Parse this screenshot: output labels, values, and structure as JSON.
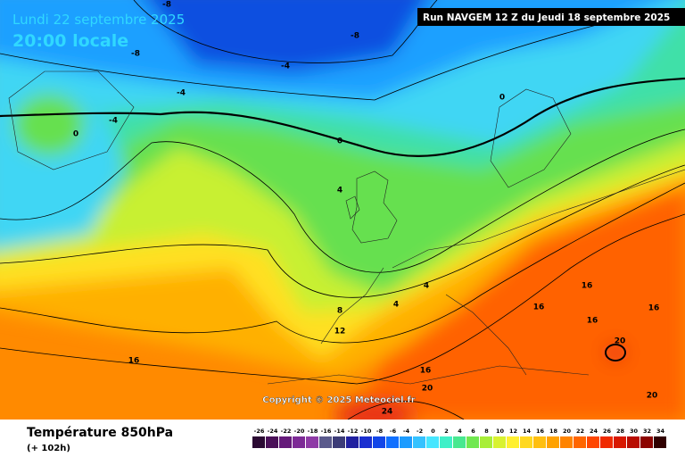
{
  "header": {
    "date": "Lundi 22 septembre 2025",
    "time": "20:00 locale",
    "run": "Run NAVGEM 12 Z du Jeudi 18 septembre 2025"
  },
  "map": {
    "copyright": "Copyright © 2025 Meteociel.fr",
    "contour_labels": [
      -8,
      -8,
      -8,
      -4,
      -4,
      -4,
      0,
      0,
      0,
      4,
      4,
      4,
      8,
      12,
      16,
      16,
      16,
      16,
      16,
      16,
      20,
      20,
      20,
      24
    ]
  },
  "footer": {
    "title": "Température 850hPa",
    "lead": "(+ 102h)"
  },
  "legend": {
    "values": [
      -26,
      -24,
      -22,
      -20,
      -18,
      -16,
      -14,
      -12,
      -10,
      -8,
      -6,
      -4,
      -2,
      0,
      2,
      4,
      6,
      8,
      10,
      12,
      14,
      16,
      18,
      20,
      22,
      24,
      26,
      28,
      30,
      32,
      34
    ],
    "colors": [
      "#2b0a33",
      "#4a1058",
      "#651a7a",
      "#7d2a96",
      "#8e3aa6",
      "#5a5a8c",
      "#3c3c78",
      "#2020a0",
      "#1a2fd0",
      "#1246e8",
      "#1070ff",
      "#1d9cff",
      "#35c2ff",
      "#46e6ff",
      "#3ff0c8",
      "#48e890",
      "#70e850",
      "#a8ee38",
      "#d8f230",
      "#fff030",
      "#ffd820",
      "#ffbf10",
      "#ffa200",
      "#ff8400",
      "#ff6600",
      "#ff4600",
      "#f02a00",
      "#d81800",
      "#b80c00",
      "#8c0400",
      "#300000"
    ]
  }
}
